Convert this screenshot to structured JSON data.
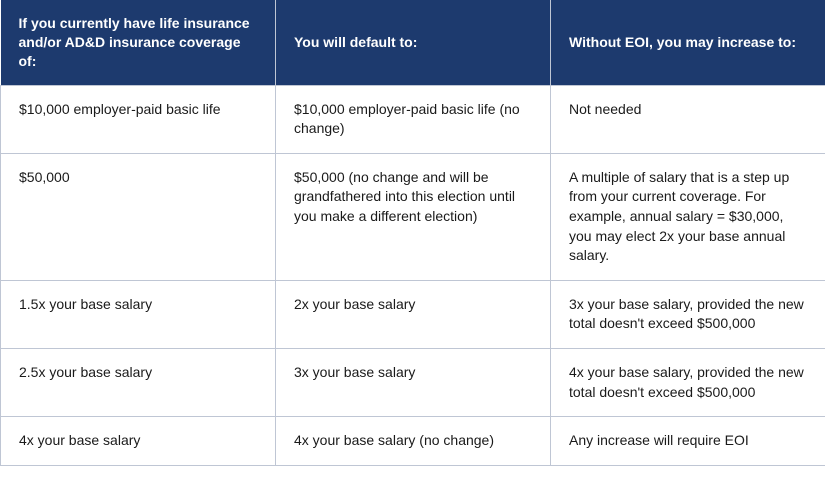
{
  "table": {
    "header_bg": "#1d3a6e",
    "header_fg": "#ffffff",
    "border_color": "#bfc6d4",
    "body_fg": "#1a1a1a",
    "font_size_header": 14,
    "font_size_body": 14,
    "columns": [
      "If you currently have life insurance and/or AD&D insurance coverage of:",
      "You will default to:",
      "Without EOI, you may increase to:"
    ],
    "rows": [
      {
        "current": "$10,000 employer-paid basic life",
        "default": "$10,000 employer-paid basic life (no change)",
        "increase": "Not needed"
      },
      {
        "current": "$50,000",
        "default": "$50,000 (no change and will be grandfathered into this election until you make a different election)",
        "increase": "A multiple of salary that is a step up from your current coverage. For example, annual salary = $30,000, you may elect 2x your base annual salary."
      },
      {
        "current": "1.5x your base salary",
        "default": "2x your base salary",
        "increase": "3x your base salary, provided the new total doesn't exceed $500,000"
      },
      {
        "current": "2.5x your base salary",
        "default": "3x your base salary",
        "increase": "4x your base salary, provided the new total doesn't exceed $500,000"
      },
      {
        "current": "4x your base salary",
        "default": "4x your base salary (no change)",
        "increase": "Any increase will require EOI"
      }
    ]
  }
}
